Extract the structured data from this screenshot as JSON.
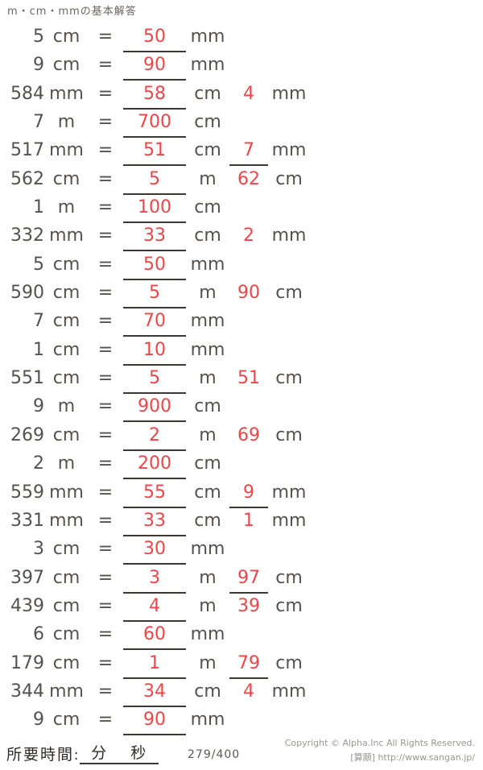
{
  "title": "m・cm・mmの基本解答",
  "equals_sign": "=",
  "colors": {
    "text_gray": "#56514c",
    "answer_red": "#ee4549",
    "underline": "#3c3935",
    "footer_gray": "#9a9692"
  },
  "rows": [
    {
      "n": "5",
      "u1": "cm",
      "a1": "50",
      "u2": "mm"
    },
    {
      "n": "9",
      "u1": "cm",
      "a1": "90",
      "u2": "mm"
    },
    {
      "n": "584",
      "u1": "mm",
      "a1": "58",
      "u2": "cm",
      "a2": "4",
      "u3": "mm",
      "a2u": false
    },
    {
      "n": "7",
      "u1": "m",
      "a1": "700",
      "u2": "cm"
    },
    {
      "n": "517",
      "u1": "mm",
      "a1": "51",
      "u2": "cm",
      "a2": "7",
      "u3": "mm",
      "a2u": true
    },
    {
      "n": "562",
      "u1": "cm",
      "a1": "5",
      "u2": "m",
      "a2": "62",
      "u3": "cm",
      "a2u": false
    },
    {
      "n": "1",
      "u1": "m",
      "a1": "100",
      "u2": "cm"
    },
    {
      "n": "332",
      "u1": "mm",
      "a1": "33",
      "u2": "cm",
      "a2": "2",
      "u3": "mm",
      "a2u": false
    },
    {
      "n": "5",
      "u1": "cm",
      "a1": "50",
      "u2": "mm"
    },
    {
      "n": "590",
      "u1": "cm",
      "a1": "5",
      "u2": "m",
      "a2": "90",
      "u3": "cm",
      "a2u": false
    },
    {
      "n": "7",
      "u1": "cm",
      "a1": "70",
      "u2": "mm"
    },
    {
      "n": "1",
      "u1": "cm",
      "a1": "10",
      "u2": "mm"
    },
    {
      "n": "551",
      "u1": "cm",
      "a1": "5",
      "u2": "m",
      "a2": "51",
      "u3": "cm",
      "a2u": false
    },
    {
      "n": "9",
      "u1": "m",
      "a1": "900",
      "u2": "cm"
    },
    {
      "n": "269",
      "u1": "cm",
      "a1": "2",
      "u2": "m",
      "a2": "69",
      "u3": "cm",
      "a2u": false
    },
    {
      "n": "2",
      "u1": "m",
      "a1": "200",
      "u2": "cm"
    },
    {
      "n": "559",
      "u1": "mm",
      "a1": "55",
      "u2": "cm",
      "a2": "9",
      "u3": "mm",
      "a2u": true
    },
    {
      "n": "331",
      "u1": "mm",
      "a1": "33",
      "u2": "cm",
      "a2": "1",
      "u3": "mm",
      "a2u": false
    },
    {
      "n": "3",
      "u1": "cm",
      "a1": "30",
      "u2": "mm"
    },
    {
      "n": "397",
      "u1": "cm",
      "a1": "3",
      "u2": "m",
      "a2": "97",
      "u3": "cm",
      "a2u": true
    },
    {
      "n": "439",
      "u1": "cm",
      "a1": "4",
      "u2": "m",
      "a2": "39",
      "u3": "cm",
      "a2u": false
    },
    {
      "n": "6",
      "u1": "cm",
      "a1": "60",
      "u2": "mm"
    },
    {
      "n": "179",
      "u1": "cm",
      "a1": "1",
      "u2": "m",
      "a2": "79",
      "u3": "cm",
      "a2u": true
    },
    {
      "n": "344",
      "u1": "mm",
      "a1": "34",
      "u2": "cm",
      "a2": "4",
      "u3": "mm",
      "a2u": false
    },
    {
      "n": "9",
      "u1": "cm",
      "a1": "90",
      "u2": "mm"
    }
  ],
  "footer": {
    "time_label": "所要時間:",
    "minutes_label": "分",
    "seconds_label": "秒",
    "progress": "279/400",
    "copyright_line1": "Copyright © Alpha.Inc All Rights Reserved.",
    "copyright_line2": "[算願] http://www.sangan.jp/"
  }
}
